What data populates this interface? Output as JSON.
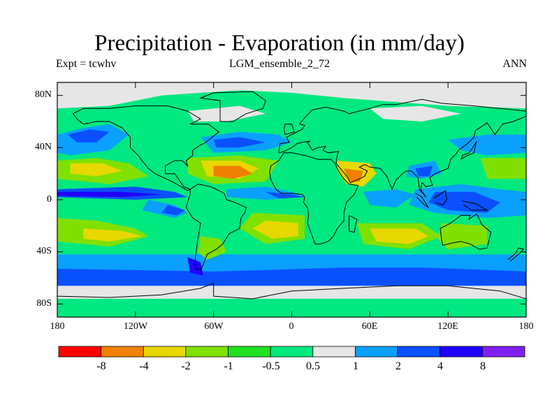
{
  "title": "Precipitation - Evaporation (in mm/day)",
  "subtitle": {
    "left": "Expt = tcwhv",
    "center": "LGM_ensemble_2_72",
    "right": "ANN"
  },
  "chart_data": {
    "type": "heatmap",
    "variable": "Precipitation - Evaporation",
    "units": "mm/day",
    "season": "ANN",
    "projection": "cylindrical equidistant",
    "xlim": [
      -180,
      180
    ],
    "ylim": [
      -90,
      90
    ],
    "x_ticks": [
      -180,
      -120,
      -60,
      0,
      60,
      120,
      180
    ],
    "x_tick_labels": [
      "180",
      "120W",
      "60W",
      "0",
      "60E",
      "120E",
      "180"
    ],
    "y_ticks": [
      80,
      40,
      0,
      -40,
      -80
    ],
    "y_tick_labels": [
      "80N",
      "40N",
      "0",
      "40S",
      "80S"
    ],
    "colorbar": {
      "levels": [
        -8,
        -4,
        -2,
        -1,
        -0.5,
        0.5,
        1,
        2,
        4,
        8
      ],
      "level_labels": [
        "-8",
        "-4",
        "-2",
        "-1",
        "-0.5",
        "0.5",
        "1",
        "2",
        "4",
        "8"
      ],
      "colors": [
        "#ff0000",
        "#f08000",
        "#e6d800",
        "#80e000",
        "#20e020",
        "#00e880",
        "#e6e6e6",
        "#0aa0ff",
        "#0a50ff",
        "#2000ff",
        "#8020f0"
      ]
    }
  }
}
